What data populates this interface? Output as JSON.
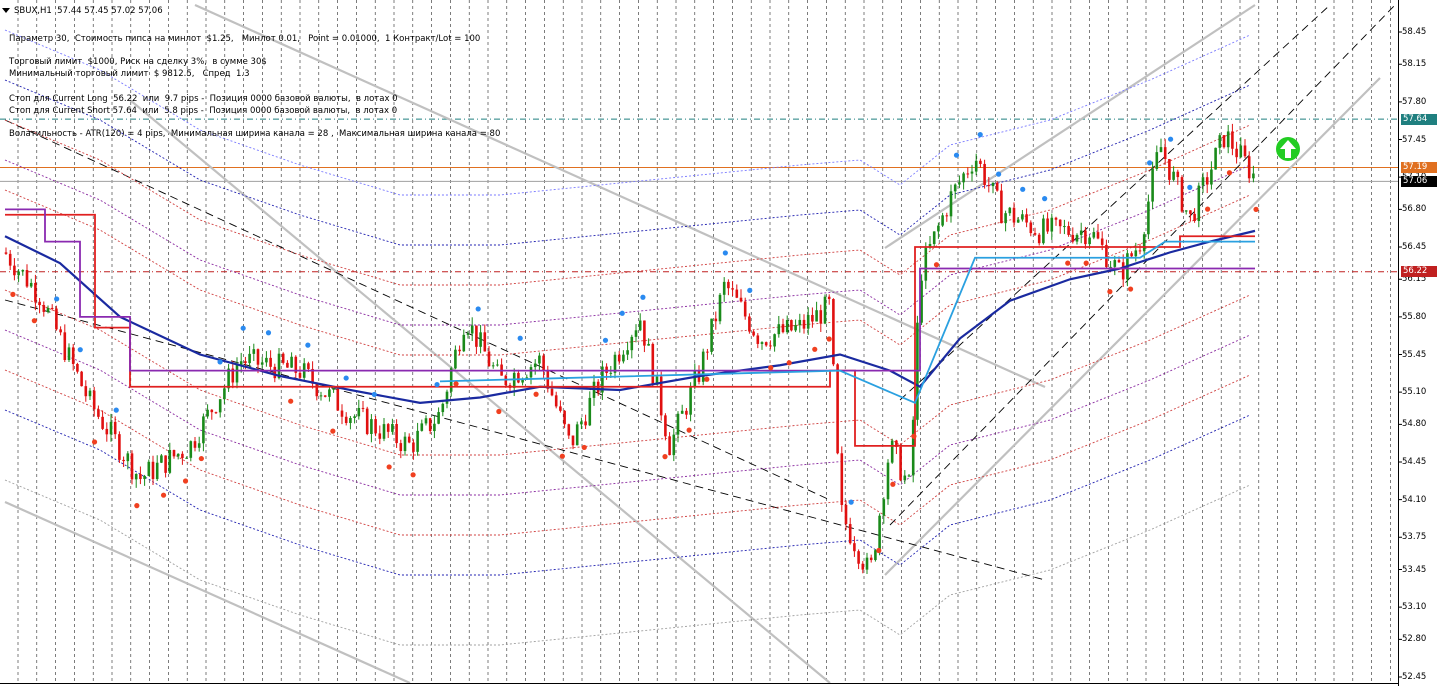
{
  "header": {
    "symbol_line": "SBUX,H1  57.44 57.45 57.02 57.06"
  },
  "info_lines": [
    "Параметр 30,  Стоимость пипса на минлот  $1.25,   Минлот 0.01,   Point = 0.01000,  1 Контракт/Lot = 100",
    "Торговый лимит  $1000, Риск на сделку 3%,  в сумме 30$",
    "Минимальный торговый лимит  $ 9812.5,   Спред  1.3",
    "Стоп для Current Long  56.22  или  9.7 pips -  Позиция 0000 базовой валюты,  в лотах 0",
    "Стоп для Current Short 57.64  или  5.8 pips -  Позиция 0000 базовой валюты,  в лотах 0",
    "Волатильность - ATR(120) = 4 pips,  Минимальная ширина канала = 28 ,  Максимальная ширина канала = 80"
  ],
  "price_axis": {
    "labels": [
      "58.45",
      "58.15",
      "57.80",
      "57.45",
      "57.10",
      "56.80",
      "56.45",
      "56.15",
      "55.80",
      "55.45",
      "55.10",
      "54.80",
      "54.45",
      "54.10",
      "53.75",
      "53.45",
      "53.10",
      "52.80",
      "52.45"
    ],
    "min": 52.45,
    "max": 58.45
  },
  "price_markers": [
    {
      "label": "57.64",
      "value": 57.64,
      "color": "#1f7f7f"
    },
    {
      "label": "57.19",
      "value": 57.19,
      "color": "#e07020"
    },
    {
      "label": "57.06",
      "value": 57.06,
      "color": "#000000"
    },
    {
      "label": "56.22",
      "value": 56.22,
      "color": "#c02020"
    }
  ],
  "colors": {
    "bull": "#1a8a1a",
    "bear": "#e01010",
    "ma_main": "#1a2aa0",
    "channel": "#c0c0c0",
    "stop_long": "#c02020",
    "stop_short": "#1f7f7f",
    "signal": "#22cc22"
  },
  "signal_icon": "up-arrow-icon"
}
